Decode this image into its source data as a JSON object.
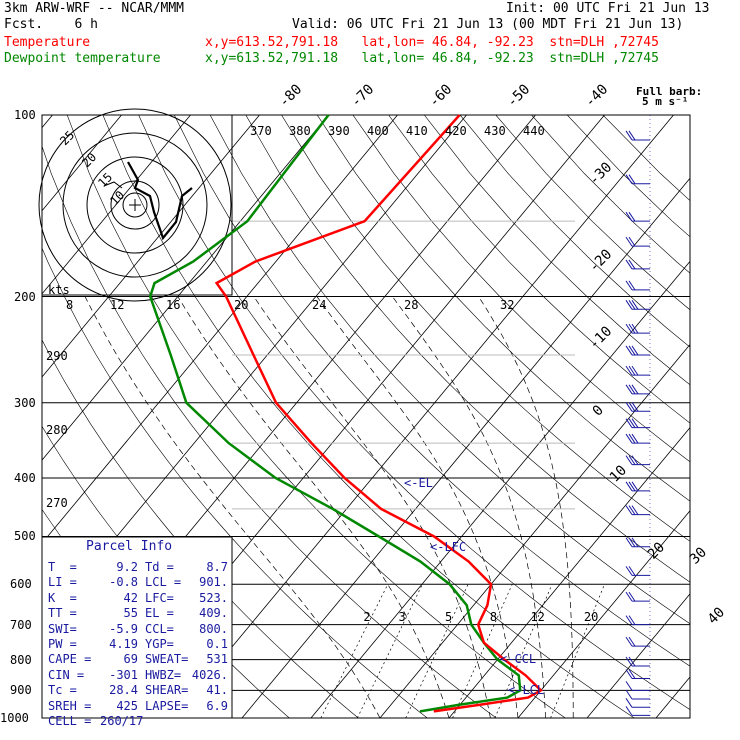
{
  "header": {
    "model": "3km ARW-WRF -- NCAR/MMM",
    "init": "Init: 00 UTC Fri 21 Jun 13",
    "fcst": "Fcst.    6 h",
    "valid": "Valid: 06 UTC Fri 21 Jun 13 (00 MDT Fri 21 Jun 13)",
    "temp_label": "Temperature",
    "temp_info": "x,y=613.52,791.18   lat,lon= 46.84, -92.23  stn=DLH ,72745",
    "dew_label": "Dewpoint temperature",
    "dew_info": "x,y=613.52,791.18   lat,lon= 46.84, -92.23  stn=DLH ,72745"
  },
  "colors": {
    "temperature": "#ff0000",
    "dewpoint": "#008800",
    "text": "#1a1aa0",
    "grid": "#000000",
    "hodograph": "#000000"
  },
  "wind_legend": {
    "title": "Full barb:",
    "value": "5 m s⁻¹"
  },
  "chart_data": {
    "type": "line",
    "chart_kind": "skew-T log-P",
    "pressure_levels": [
      100,
      200,
      300,
      400,
      500,
      600,
      700,
      800,
      900,
      1000
    ],
    "pressure_tick_labels": [
      "100",
      "200",
      "300",
      "400",
      "500",
      "600",
      "700",
      "800",
      "900",
      "1000"
    ],
    "temperature_isotherm_labels": [
      "-80",
      "-70",
      "-60",
      "-50",
      "-40",
      "-30",
      "-20",
      "-10",
      "0",
      "10",
      "20",
      "30",
      "40"
    ],
    "theta_labels_top": [
      "370",
      "380",
      "390",
      "400",
      "410",
      "420",
      "430",
      "440"
    ],
    "theta_labels_left": [
      "290",
      "280",
      "270"
    ],
    "mixing_ratio_labels": [
      "2",
      "3",
      "5",
      "8",
      "12",
      "20"
    ],
    "temperature": {
      "name": "Temperature",
      "points": [
        [
          100,
          -61
        ],
        [
          150,
          -62
        ],
        [
          175,
          -73
        ],
        [
          190,
          -76
        ],
        [
          200,
          -73
        ],
        [
          250,
          -62
        ],
        [
          300,
          -53
        ],
        [
          350,
          -43
        ],
        [
          400,
          -34
        ],
        [
          450,
          -25
        ],
        [
          500,
          -14
        ],
        [
          550,
          -6
        ],
        [
          600,
          0
        ],
        [
          650,
          2
        ],
        [
          700,
          3
        ],
        [
          750,
          6
        ],
        [
          800,
          11
        ],
        [
          850,
          16
        ],
        [
          900,
          20
        ],
        [
          925,
          19
        ],
        [
          950,
          13
        ],
        [
          975,
          7
        ]
      ]
    },
    "dewpoint": {
      "name": "Dewpoint temperature",
      "points": [
        [
          100,
          -80
        ],
        [
          150,
          -79
        ],
        [
          175,
          -82
        ],
        [
          190,
          -85
        ],
        [
          200,
          -84
        ],
        [
          250,
          -74
        ],
        [
          300,
          -66
        ],
        [
          350,
          -55
        ],
        [
          400,
          -44
        ],
        [
          450,
          -32
        ],
        [
          500,
          -22
        ],
        [
          550,
          -13
        ],
        [
          600,
          -6
        ],
        [
          650,
          -1
        ],
        [
          700,
          2
        ],
        [
          750,
          6
        ],
        [
          800,
          10
        ],
        [
          850,
          15
        ],
        [
          900,
          17
        ],
        [
          925,
          16
        ],
        [
          950,
          10
        ],
        [
          975,
          5
        ]
      ]
    },
    "annotations": [
      {
        "text": "<-EL",
        "pressure": 409
      },
      {
        "text": "<-LFC",
        "pressure": 523
      },
      {
        "text": "<-CCL",
        "pressure": 800
      },
      {
        "text": "<-LCL",
        "pressure": 901
      }
    ],
    "hodograph": {
      "units": "kts",
      "ring_labels": [
        "25",
        "20",
        "15",
        "10"
      ],
      "speed_tick_labels": [
        "8",
        "12",
        "16",
        "20",
        "24",
        "28",
        "32"
      ]
    },
    "parcel_info": {
      "title": "Parcel Info",
      "rows": [
        [
          "T  =",
          "9.2",
          "Td =",
          "8.7"
        ],
        [
          "LI =",
          "-0.8",
          "LCL =",
          "901."
        ],
        [
          "K  =",
          "42",
          "LFC=",
          "523."
        ],
        [
          "TT =",
          "55",
          "EL =",
          "409."
        ],
        [
          "SWI=",
          "-5.9",
          "CCL=",
          "800."
        ],
        [
          "PW =",
          "4.19",
          "YGP=",
          "0.1"
        ],
        [
          "CAPE =",
          "69",
          "SWEAT=",
          "531"
        ],
        [
          "CIN =",
          "-301",
          "HWBZ=",
          "4026."
        ],
        [
          "Tc =",
          "28.4",
          "SHEAR=",
          "41."
        ],
        [
          "SREH =",
          "425",
          "LAPSE=",
          "6.9"
        ],
        [
          "CELL =",
          "260/17",
          "",
          ""
        ]
      ]
    }
  }
}
